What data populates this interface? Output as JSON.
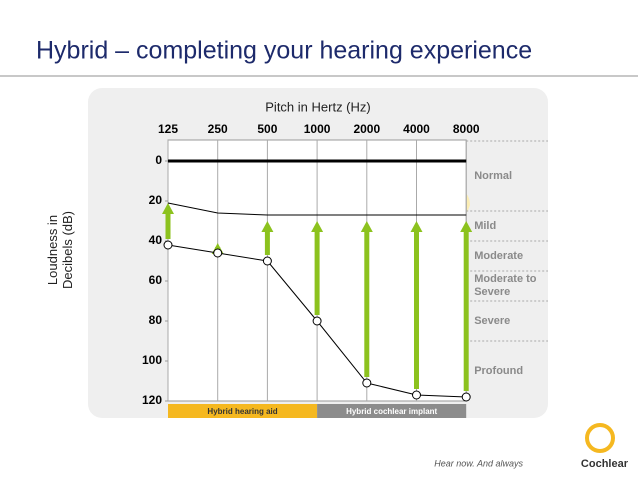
{
  "title": "Hybrid – completing your hearing experience",
  "chart_data": {
    "type": "line",
    "x_label": "Pitch in Hertz (Hz)",
    "y_label": "Loudness in Decibels (dB)",
    "categories": [
      "125",
      "250",
      "500",
      "1000",
      "2000",
      "4000",
      "8000"
    ],
    "ylim": [
      0,
      120
    ],
    "y_inverted": true,
    "yticks": [
      0,
      20,
      40,
      60,
      80,
      100,
      120
    ],
    "series": [
      {
        "role": "thresholds",
        "color": "#000000",
        "values": [
          42,
          46,
          50,
          80,
          111,
          117,
          118
        ]
      },
      {
        "role": "aided",
        "color": "#000000",
        "values": [
          21,
          26,
          27,
          27,
          27,
          27,
          27
        ]
      },
      {
        "role": "arrows",
        "color": "#8cc21e",
        "values": [
          21,
          41,
          30,
          30,
          30,
          30,
          30
        ]
      }
    ],
    "bands": [
      {
        "label": "Normal",
        "from": -10,
        "to": 25
      },
      {
        "label": "Mild",
        "from": 25,
        "to": 40
      },
      {
        "label": "Moderate",
        "from": 40,
        "to": 55
      },
      {
        "label": "Moderate to Severe",
        "from": 55,
        "to": 70
      },
      {
        "label": "Severe",
        "from": 70,
        "to": 90
      },
      {
        "label": "Profound",
        "from": 90,
        "to": 120
      }
    ],
    "devices": [
      {
        "label": "Hybrid hearing aid",
        "from": 0,
        "to": 3,
        "color": "#f5b820"
      },
      {
        "label": "Hybrid cochlear implant",
        "from": 3,
        "to": 6,
        "color": "#8c8c8c"
      }
    ]
  },
  "footer": {
    "tagline": "Hear now. And always",
    "brand": "Cochlear"
  }
}
